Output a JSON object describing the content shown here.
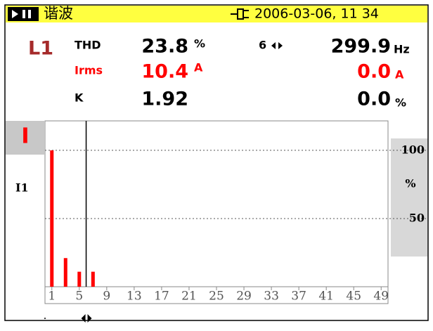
{
  "header": {
    "mode": "谐波",
    "datetime": "2006-03-06, 11 34"
  },
  "readings": {
    "phase": "L1",
    "thd_label": "THD",
    "thd_value": "23.8",
    "thd_unit": "%",
    "harmonic": "6",
    "freq_value": "299.9",
    "freq_unit": "Hz",
    "irms_label": "Irms",
    "irms_value": "10.4",
    "irms_unit": "A",
    "h_amp_value": "0.0",
    "h_amp_unit": "A",
    "k_label": "K",
    "k_value": "1.92",
    "h_pct_value": "0.0",
    "h_pct_unit": "%"
  },
  "spectrum": {
    "channel": "I",
    "trace": "I1",
    "unit": "%",
    "harmonics": [
      1,
      3,
      5,
      7
    ],
    "values": [
      100,
      21,
      11,
      11
    ],
    "color": "#ff0000",
    "cursor": 6,
    "xlim": [
      0,
      50
    ],
    "xticks": [
      1,
      5,
      9,
      13,
      17,
      21,
      25,
      29,
      33,
      37,
      41,
      45,
      49
    ],
    "ylim": [
      0,
      118
    ],
    "yticks": [
      50,
      100
    ]
  }
}
